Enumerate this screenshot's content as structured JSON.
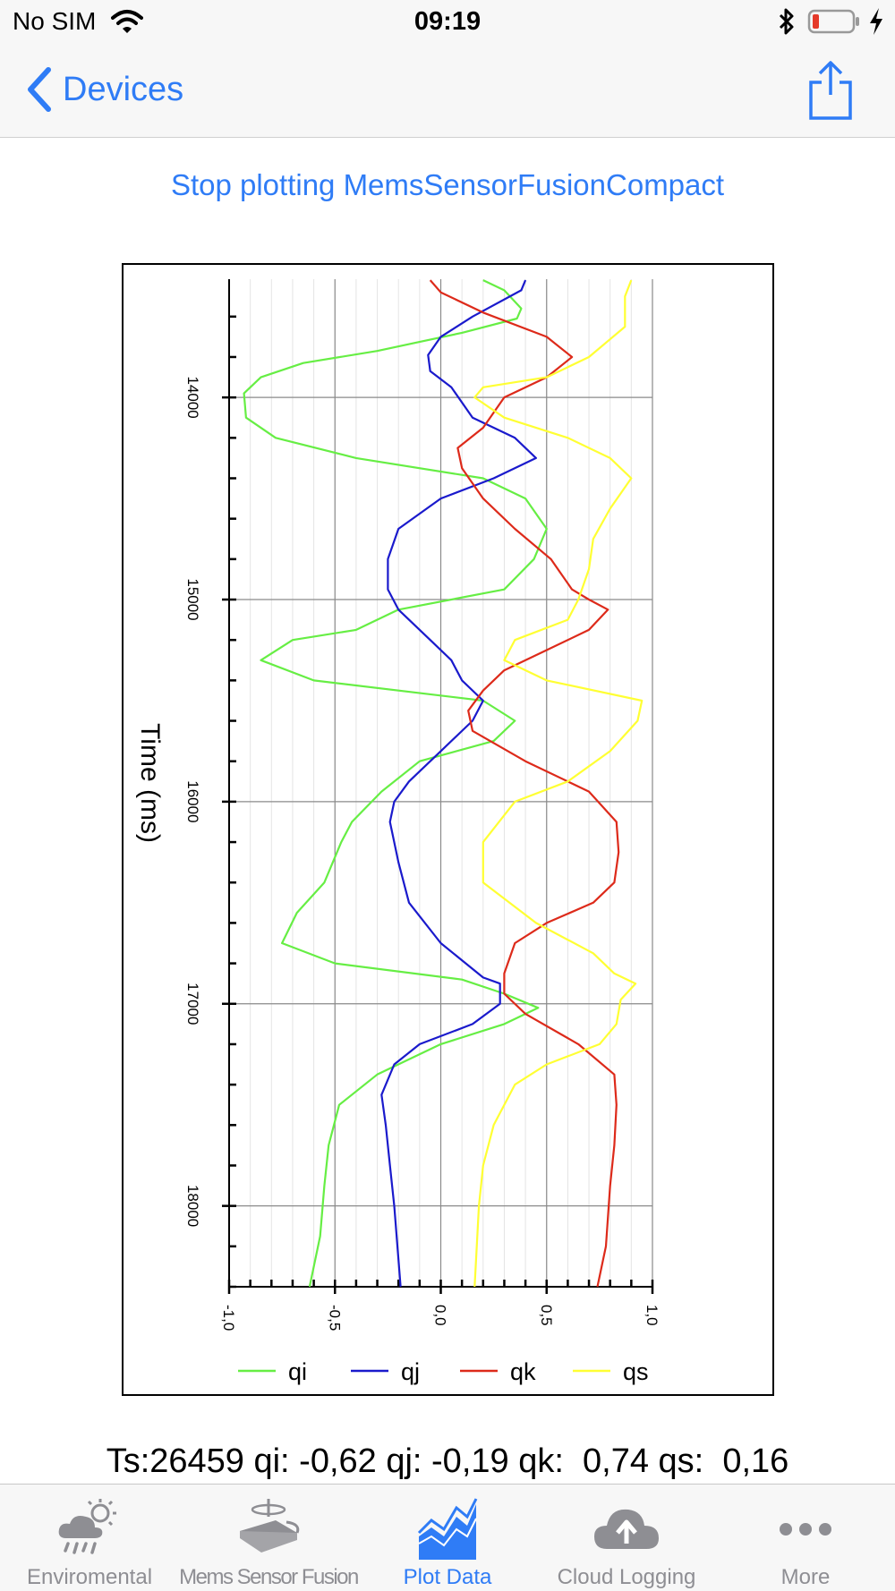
{
  "status_bar": {
    "carrier": "No SIM",
    "time": "09:19",
    "battery_icon": "battery-low-icon"
  },
  "nav": {
    "back_label": "Devices",
    "share_icon": "share-icon"
  },
  "stop_link": "Stop plotting MemsSensorFusionCompact",
  "readout": "Ts:26459 qi: -0,62 qj: -0,19 qk:  0,74 qs:  0,16",
  "chart_data": {
    "type": "line",
    "orientation": "rotated 90° (time on vertical axis, values on horizontal axis)",
    "time_label": "Time (ms)",
    "time_ticks": [
      "14000",
      "15000",
      "16000",
      "17000",
      "18000"
    ],
    "value_ticks": [
      "-1,0",
      "-0,5",
      "0,0",
      "0,5",
      "1,0"
    ],
    "xlim": [
      -1.0,
      1.0
    ],
    "tlim": [
      13415,
      18400
    ],
    "grid": true,
    "legend_position": "bottom",
    "colors": {
      "qi": "#66ee44",
      "qj": "#1a1acc",
      "qk": "#dd2a1a",
      "qs": "#ffff33"
    },
    "series": [
      {
        "name": "qi",
        "color": "#66ee44",
        "points": [
          [
            13420,
            0.2
          ],
          [
            13470,
            0.3
          ],
          [
            13560,
            0.38
          ],
          [
            13610,
            0.36
          ],
          [
            13680,
            0.1
          ],
          [
            13770,
            -0.3
          ],
          [
            13830,
            -0.65
          ],
          [
            13900,
            -0.85
          ],
          [
            13980,
            -0.93
          ],
          [
            14100,
            -0.92
          ],
          [
            14200,
            -0.78
          ],
          [
            14300,
            -0.4
          ],
          [
            14400,
            0.2
          ],
          [
            14500,
            0.4
          ],
          [
            14650,
            0.5
          ],
          [
            14800,
            0.44
          ],
          [
            14950,
            0.3
          ],
          [
            15050,
            -0.2
          ],
          [
            15150,
            -0.4
          ],
          [
            15200,
            -0.7
          ],
          [
            15300,
            -0.85
          ],
          [
            15400,
            -0.6
          ],
          [
            15500,
            0.2
          ],
          [
            15600,
            0.35
          ],
          [
            15700,
            0.25
          ],
          [
            15800,
            -0.1
          ],
          [
            15950,
            -0.28
          ],
          [
            16100,
            -0.42
          ],
          [
            16200,
            -0.47
          ],
          [
            16400,
            -0.55
          ],
          [
            16550,
            -0.68
          ],
          [
            16700,
            -0.75
          ],
          [
            16800,
            -0.5
          ],
          [
            16880,
            0.1
          ],
          [
            16950,
            0.3
          ],
          [
            17020,
            0.46
          ],
          [
            17100,
            0.3
          ],
          [
            17200,
            0.0
          ],
          [
            17350,
            -0.3
          ],
          [
            17500,
            -0.48
          ],
          [
            17700,
            -0.53
          ],
          [
            17900,
            -0.55
          ],
          [
            18150,
            -0.57
          ],
          [
            18400,
            -0.62
          ]
        ]
      },
      {
        "name": "qj",
        "color": "#1a1acc",
        "points": [
          [
            13420,
            0.4
          ],
          [
            13470,
            0.38
          ],
          [
            13600,
            0.15
          ],
          [
            13700,
            0.0
          ],
          [
            13790,
            -0.06
          ],
          [
            13870,
            -0.05
          ],
          [
            13950,
            0.05
          ],
          [
            14100,
            0.15
          ],
          [
            14200,
            0.35
          ],
          [
            14300,
            0.45
          ],
          [
            14400,
            0.25
          ],
          [
            14500,
            0.0
          ],
          [
            14650,
            -0.2
          ],
          [
            14800,
            -0.25
          ],
          [
            14950,
            -0.25
          ],
          [
            15050,
            -0.2
          ],
          [
            15200,
            -0.05
          ],
          [
            15300,
            0.05
          ],
          [
            15400,
            0.1
          ],
          [
            15500,
            0.2
          ],
          [
            15600,
            0.15
          ],
          [
            15750,
            0.0
          ],
          [
            15900,
            -0.15
          ],
          [
            16000,
            -0.22
          ],
          [
            16100,
            -0.24
          ],
          [
            16300,
            -0.2
          ],
          [
            16500,
            -0.15
          ],
          [
            16700,
            0.0
          ],
          [
            16870,
            0.2
          ],
          [
            16900,
            0.28
          ],
          [
            17000,
            0.28
          ],
          [
            17100,
            0.15
          ],
          [
            17200,
            -0.1
          ],
          [
            17300,
            -0.22
          ],
          [
            17450,
            -0.28
          ],
          [
            17600,
            -0.26
          ],
          [
            17800,
            -0.24
          ],
          [
            18000,
            -0.22
          ],
          [
            18400,
            -0.19
          ]
        ]
      },
      {
        "name": "qk",
        "color": "#dd2a1a",
        "points": [
          [
            13420,
            -0.05
          ],
          [
            13480,
            0.0
          ],
          [
            13580,
            0.2
          ],
          [
            13700,
            0.5
          ],
          [
            13800,
            0.62
          ],
          [
            13900,
            0.5
          ],
          [
            14000,
            0.3
          ],
          [
            14150,
            0.2
          ],
          [
            14250,
            0.08
          ],
          [
            14350,
            0.1
          ],
          [
            14500,
            0.2
          ],
          [
            14650,
            0.35
          ],
          [
            14800,
            0.52
          ],
          [
            14950,
            0.62
          ],
          [
            15000,
            0.7
          ],
          [
            15050,
            0.79
          ],
          [
            15150,
            0.7
          ],
          [
            15250,
            0.5
          ],
          [
            15350,
            0.3
          ],
          [
            15450,
            0.2
          ],
          [
            15550,
            0.13
          ],
          [
            15650,
            0.15
          ],
          [
            15800,
            0.4
          ],
          [
            15950,
            0.7
          ],
          [
            16100,
            0.83
          ],
          [
            16250,
            0.84
          ],
          [
            16400,
            0.82
          ],
          [
            16500,
            0.72
          ],
          [
            16600,
            0.5
          ],
          [
            16700,
            0.35
          ],
          [
            16850,
            0.3
          ],
          [
            16950,
            0.3
          ],
          [
            17050,
            0.4
          ],
          [
            17200,
            0.65
          ],
          [
            17350,
            0.82
          ],
          [
            17500,
            0.83
          ],
          [
            17700,
            0.82
          ],
          [
            17900,
            0.8
          ],
          [
            18200,
            0.78
          ],
          [
            18400,
            0.74
          ]
        ]
      },
      {
        "name": "qs",
        "color": "#ffff33",
        "points": [
          [
            13420,
            0.9
          ],
          [
            13500,
            0.87
          ],
          [
            13650,
            0.87
          ],
          [
            13800,
            0.7
          ],
          [
            13900,
            0.5
          ],
          [
            13950,
            0.2
          ],
          [
            14000,
            0.16
          ],
          [
            14100,
            0.3
          ],
          [
            14200,
            0.6
          ],
          [
            14300,
            0.8
          ],
          [
            14400,
            0.9
          ],
          [
            14550,
            0.8
          ],
          [
            14700,
            0.72
          ],
          [
            14850,
            0.7
          ],
          [
            15000,
            0.65
          ],
          [
            15100,
            0.6
          ],
          [
            15200,
            0.35
          ],
          [
            15300,
            0.3
          ],
          [
            15400,
            0.5
          ],
          [
            15500,
            0.95
          ],
          [
            15600,
            0.93
          ],
          [
            15750,
            0.8
          ],
          [
            15900,
            0.6
          ],
          [
            16000,
            0.35
          ],
          [
            16200,
            0.2
          ],
          [
            16400,
            0.2
          ],
          [
            16600,
            0.45
          ],
          [
            16750,
            0.72
          ],
          [
            16850,
            0.82
          ],
          [
            16900,
            0.92
          ],
          [
            16980,
            0.85
          ],
          [
            17100,
            0.83
          ],
          [
            17200,
            0.75
          ],
          [
            17300,
            0.5
          ],
          [
            17400,
            0.35
          ],
          [
            17600,
            0.25
          ],
          [
            17800,
            0.2
          ],
          [
            18000,
            0.18
          ],
          [
            18400,
            0.16
          ]
        ]
      }
    ]
  },
  "tabs": [
    {
      "label": "Enviromental",
      "icon": "weather-icon",
      "active": false
    },
    {
      "label": "Mems Sensor Fusion",
      "icon": "sensor-fusion-icon",
      "active": false
    },
    {
      "label": "Plot Data",
      "icon": "chart-icon",
      "active": true
    },
    {
      "label": "Cloud Logging",
      "icon": "cloud-upload-icon",
      "active": false
    },
    {
      "label": "More",
      "icon": "more-icon",
      "active": false
    }
  ]
}
